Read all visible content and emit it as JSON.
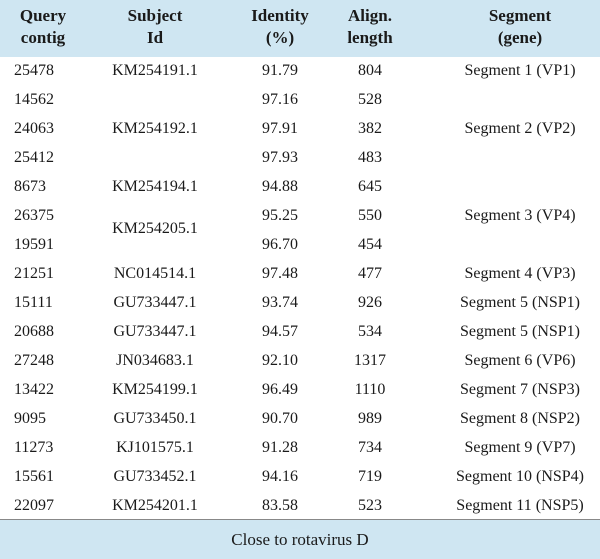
{
  "headers": {
    "query": [
      "Query",
      "contig"
    ],
    "subject": [
      "Subject",
      "Id"
    ],
    "identity": [
      "Identity",
      "(%)"
    ],
    "align": [
      "Align.",
      "length"
    ],
    "segment": [
      "Segment",
      "(gene)"
    ]
  },
  "rows": [
    {
      "query": "25478",
      "identity": "91.79",
      "align": "804"
    },
    {
      "query": "14562",
      "identity": "97.16",
      "align": "528"
    },
    {
      "query": "24063",
      "identity": "97.91",
      "align": "382"
    },
    {
      "query": "25412",
      "identity": "97.93",
      "align": "483"
    },
    {
      "query": "8673",
      "identity": "94.88",
      "align": "645"
    },
    {
      "query": "26375",
      "identity": "95.25",
      "align": "550"
    },
    {
      "query": "19591",
      "identity": "96.70",
      "align": "454"
    },
    {
      "query": "21251",
      "subject": "NC014514.1",
      "identity": "97.48",
      "align": "477",
      "segment": "Segment 4 (VP3)"
    },
    {
      "query": "15111",
      "subject": "GU733447.1",
      "identity": "93.74",
      "align": "926",
      "segment": "Segment 5 (NSP1)"
    },
    {
      "query": "20688",
      "subject": "GU733447.1",
      "identity": "94.57",
      "align": "534",
      "segment": "Segment 5 (NSP1)"
    },
    {
      "query": "27248",
      "subject": "JN034683.1",
      "identity": "92.10",
      "align": "1317",
      "segment": "Segment 6 (VP6)"
    },
    {
      "query": "13422",
      "subject": "KM254199.1",
      "identity": "96.49",
      "align": "1110",
      "segment": "Segment 7 (NSP3)"
    },
    {
      "query": "9095",
      "subject": "GU733450.1",
      "identity": "90.70",
      "align": "989",
      "segment": "Segment 8 (NSP2)"
    },
    {
      "query": "11273",
      "subject": "KJ101575.1",
      "identity": "91.28",
      "align": "734",
      "segment": "Segment 9 (VP7)"
    },
    {
      "query": "15561",
      "subject": "GU733452.1",
      "identity": "94.16",
      "align": "719",
      "segment": "Segment 10 (NSP4)"
    },
    {
      "query": "22097",
      "subject": "KM254201.1",
      "identity": "83.58",
      "align": "523",
      "segment": "Segment 11 (NSP5)"
    }
  ],
  "merged": {
    "subject_a": "KM254191.1",
    "subject_b": "KM254192.1",
    "subject_c": "KM254194.1",
    "subject_d": "KM254205.1",
    "segment_a": "Segment 1 (VP1)",
    "segment_b": "Segment 2 (VP2)",
    "segment_c": "Segment 3 (VP4)"
  },
  "footer": "Close to rotavirus D"
}
